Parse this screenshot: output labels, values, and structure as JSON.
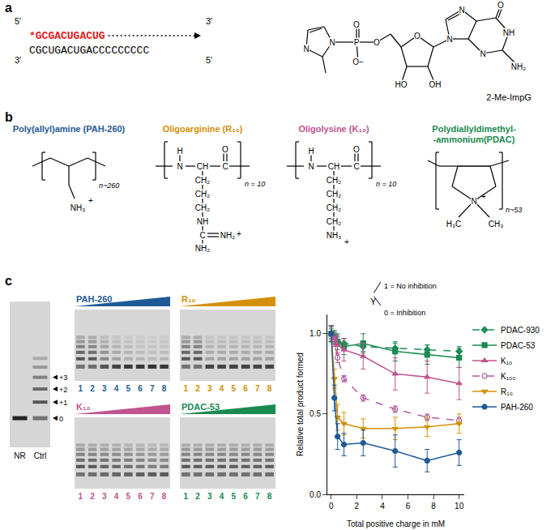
{
  "panel_labels": [
    "a",
    "b",
    "c"
  ],
  "panel_a": {
    "primer": "*GCGACUGACUG",
    "primer_color": "#e0201b",
    "template": "CGCUGACUGACCCCCCCCC",
    "ends": {
      "top_left": "5′",
      "top_right": "3′",
      "bottom_left": "3′",
      "bottom_right": "5′"
    },
    "monomer": {
      "name": "2-Me-ImpG",
      "atom_labels": [
        "N",
        "N",
        "P",
        "O",
        "O−",
        "O",
        "O",
        "HO",
        "OH",
        "N",
        "N",
        "N",
        "NH",
        "O",
        "NH₂"
      ]
    }
  },
  "panel_b": [
    {
      "title": [
        "Poly(allyl)amine (PAH-260)"
      ],
      "color": "#1f5a96",
      "labels": [
        "NH₃",
        "+"
      ],
      "repeat": "n~260"
    },
    {
      "title": [
        "Oligoarginine (R₁₀)"
      ],
      "color": "#d4900a",
      "labels": [
        "H",
        "N",
        "CH",
        "C",
        "O",
        "CH₂",
        "CH₂",
        "CH₂",
        "NH",
        "C",
        "NH₂",
        "NH₂",
        "+"
      ],
      "repeat": "n = 10"
    },
    {
      "title": [
        "Oligolysine (K₁₀)"
      ],
      "color": "#c0548f",
      "labels": [
        "H",
        "N",
        "CH",
        "C",
        "O",
        "CH₂",
        "CH₂",
        "CH₂",
        "CH₂",
        "NH₃",
        "+"
      ],
      "repeat": "n = 10"
    },
    {
      "title": [
        "Polydiallyldimethyl-",
        "-ammonium(PDAC)"
      ],
      "color": "#1a8a4f",
      "labels": [
        "N",
        "+",
        "H₃C",
        "CH₃"
      ],
      "repeat": "n~53"
    }
  ],
  "control_gel": {
    "lanes": [
      "NR",
      "Ctrl"
    ],
    "product_level": [
      0,
      1
    ],
    "band_labels": [
      "+3",
      "+2",
      "+1",
      "0"
    ]
  },
  "gels": [
    {
      "title": "PAH-260",
      "color": "#1f5a96",
      "lanes": [
        "1",
        "2",
        "3",
        "4",
        "5",
        "6",
        "7",
        "8"
      ],
      "product_level": [
        1,
        0.95,
        0.6,
        0.4,
        0.3,
        0.25,
        0.2,
        0.25
      ]
    },
    {
      "title": "R₁₀",
      "color": "#d4900a",
      "lanes": [
        "1",
        "2",
        "3",
        "4",
        "5",
        "6",
        "7",
        "8"
      ],
      "product_level": [
        1,
        1,
        0.4,
        0.4,
        0.4,
        0.4,
        0.4,
        0.4
      ]
    },
    {
      "title": "K₁₀",
      "color": "#c0548f",
      "lanes": [
        "1",
        "2",
        "3",
        "4",
        "5",
        "6",
        "7",
        "8"
      ],
      "product_level": [
        1,
        0.95,
        0.9,
        0.85,
        0.8,
        0.75,
        0.7,
        0.7
      ]
    },
    {
      "title": "PDAC-53",
      "color": "#1a8a4f",
      "lanes": [
        "1",
        "2",
        "3",
        "4",
        "5",
        "6",
        "7",
        "8"
      ],
      "product_level": [
        0.98,
        0.96,
        0.95,
        0.95,
        0.94,
        0.94,
        0.93,
        0.93
      ]
    }
  ],
  "chart_data": {
    "type": "line",
    "x_label": "Total positive charge in mM",
    "y_label": "Relative total product formed",
    "xlim": [
      -0.3,
      10.4
    ],
    "xticks": [
      0,
      2,
      4,
      6,
      8,
      10
    ],
    "ylim": [
      0,
      1.12
    ],
    "yticks": [
      {
        "value": 0,
        "label": "0.0"
      },
      {
        "value": 0.5,
        "label": "0.5"
      },
      {
        "value": 1,
        "label": "1.0"
      }
    ],
    "grid": false,
    "legend": "right",
    "annotations": [
      "Y",
      "1 = No inhibition",
      "0 = Inhibition"
    ],
    "series": [
      {
        "name": "PDAC-930",
        "color": "#1e8f5a",
        "marker": "diamond",
        "line_style": "dashed",
        "x": [
          0,
          0.25,
          0.5,
          1,
          2.5,
          5,
          7.5,
          10
        ],
        "values": [
          1.0,
          0.98,
          0.95,
          0.94,
          0.92,
          0.91,
          0.9,
          0.89
        ],
        "errors": [
          0.03,
          0.03,
          0.03,
          0.03,
          0.03,
          0.03,
          0.03,
          0.03
        ]
      },
      {
        "name": "PDAC-53",
        "color": "#1a8a4f",
        "marker": "square",
        "line_style": "solid",
        "x": [
          0,
          0.25,
          0.5,
          1,
          2.5,
          5,
          7.5,
          10
        ],
        "values": [
          1.0,
          0.98,
          0.95,
          0.92,
          0.94,
          0.89,
          0.87,
          0.85
        ],
        "errors": [
          0.05,
          0.04,
          0.05,
          0.05,
          0.06,
          0.06,
          0.06,
          0.06
        ]
      },
      {
        "name": "K₁₀",
        "color": "#c0548f",
        "marker": "triangle-up",
        "line_style": "solid",
        "x": [
          0,
          0.25,
          0.5,
          1,
          2.5,
          5,
          7.5,
          10
        ],
        "values": [
          1.0,
          0.97,
          0.93,
          0.9,
          0.86,
          0.75,
          0.73,
          0.69
        ],
        "errors": [
          0.05,
          0.04,
          0.06,
          0.07,
          0.08,
          0.1,
          0.1,
          0.1
        ]
      },
      {
        "name": "K₁₀₀",
        "color": "#b55aa0",
        "marker": "circle-open",
        "line_style": "dashed",
        "x": [
          0,
          0.25,
          0.5,
          1,
          2.5,
          5,
          7.5,
          10
        ],
        "values": [
          1.0,
          0.95,
          0.85,
          0.72,
          0.6,
          0.53,
          0.48,
          0.46
        ],
        "errors": [
          0.04,
          0.03,
          0.03,
          0.02,
          0.02,
          0.02,
          0.02,
          0.02
        ]
      },
      {
        "name": "R₁₀",
        "color": "#d4900a",
        "marker": "triangle-down",
        "line_style": "solid",
        "x": [
          0,
          0.25,
          0.5,
          1,
          2.5,
          5,
          7.5,
          10
        ],
        "values": [
          1.0,
          0.72,
          0.48,
          0.44,
          0.41,
          0.41,
          0.42,
          0.44
        ],
        "errors": [
          0.05,
          0.06,
          0.08,
          0.07,
          0.06,
          0.07,
          0.06,
          0.06
        ]
      },
      {
        "name": "PAH-260",
        "color": "#1f5a96",
        "marker": "circle",
        "line_style": "solid",
        "x": [
          0,
          0.25,
          0.5,
          1,
          2.5,
          5,
          7.5,
          10
        ],
        "values": [
          1.0,
          0.6,
          0.36,
          0.31,
          0.32,
          0.27,
          0.21,
          0.26
        ],
        "errors": [
          0.05,
          0.08,
          0.08,
          0.07,
          0.08,
          0.1,
          0.07,
          0.08
        ]
      }
    ]
  }
}
